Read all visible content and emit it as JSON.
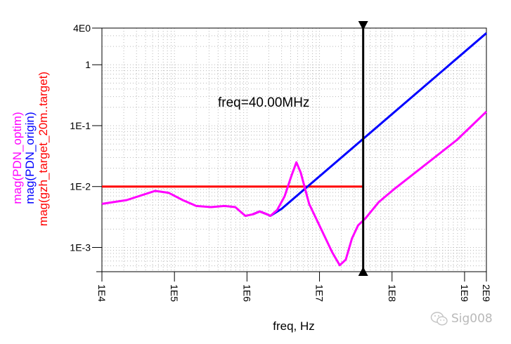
{
  "chart_data": {
    "type": "line",
    "xlabel": "freq, Hz",
    "xscale": "log",
    "yscale": "log",
    "xlim": [
      10000,
      2000000000
    ],
    "ylim": [
      0.0004,
      4
    ],
    "grid": true,
    "x_tick_labels": [
      {
        "value": 10000.0,
        "label": "1E4"
      },
      {
        "value": 100000.0,
        "label": "1E5"
      },
      {
        "value": 1000000.0,
        "label": "1E6"
      },
      {
        "value": 10000000.0,
        "label": "1E7"
      },
      {
        "value": 100000000.0,
        "label": "1E8"
      },
      {
        "value": 1000000000.0,
        "label": "1E9"
      },
      {
        "value": 2000000000.0,
        "label": "2E9"
      }
    ],
    "y_tick_labels": [
      {
        "value": 4,
        "label": "4E0"
      },
      {
        "value": 1,
        "label": "1"
      },
      {
        "value": 0.1,
        "label": "1E-1"
      },
      {
        "value": 0.01,
        "label": "1E-2"
      },
      {
        "value": 0.001,
        "label": "1E-3"
      }
    ],
    "ylabels": [
      {
        "text": "mag(PDN_optim)",
        "color": "#ff00ff"
      },
      {
        "text": "mag(PDN_origin)",
        "color": "#0000ff"
      },
      {
        "text": "mag(gzh_target_20m..target)",
        "color": "#ff0000"
      }
    ],
    "series": [
      {
        "name": "mag(PDN_optim)",
        "color": "#ff00ff",
        "x": [
          10000.0,
          22000.0,
          54000.0,
          83000.0,
          130000.0,
          200000.0,
          320000.0,
          490000.0,
          690000.0,
          950000.0,
          1200000.0,
          1500000.0,
          1900000.0,
          2100000.0,
          2600000.0,
          3300000.0,
          4100000.0,
          4800000.0,
          5500000.0,
          7200000.0,
          11000000.0,
          15000000.0,
          19000000.0,
          23000000.0,
          28000000.0,
          34000000.0,
          43000000.0,
          66000000.0,
          105000000.0,
          250000000.0,
          780000000.0,
          2000000000.0
        ],
        "y": [
          0.0052,
          0.006,
          0.0085,
          0.0079,
          0.006,
          0.0048,
          0.0046,
          0.0048,
          0.0046,
          0.0033,
          0.0035,
          0.0039,
          0.0035,
          0.0033,
          0.0041,
          0.0069,
          0.015,
          0.025,
          0.017,
          0.0052,
          0.0018,
          0.00083,
          0.00051,
          0.00063,
          0.0014,
          0.0023,
          0.003,
          0.0056,
          0.0089,
          0.02,
          0.058,
          0.17
        ]
      },
      {
        "name": "mag(PDN_origin)",
        "color": "#0000ff",
        "x": [
          1200000.0,
          1500000.0,
          1900000.0,
          2100000.0,
          3000000.0,
          2000000000.0
        ],
        "y": [
          0.0035,
          0.0039,
          0.0035,
          0.0033,
          0.0043,
          3.3
        ]
      },
      {
        "name": "mag(gzh_target_20m..target)",
        "color": "#ff0000",
        "x": [
          10000.0,
          40000000.0
        ],
        "y": [
          0.01,
          0.01
        ]
      }
    ],
    "marker": {
      "x": 40000000.0,
      "label": "freq=40.00MHz"
    }
  },
  "watermark": "Sig008"
}
